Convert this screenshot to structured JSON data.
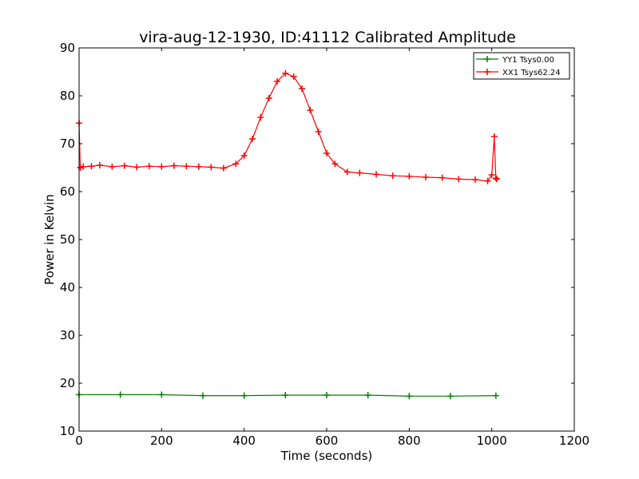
{
  "chart_data": {
    "type": "line",
    "title": "vira-aug-12-1930, ID:41112 Calibrated Amplitude",
    "xlabel": "Time (seconds)",
    "ylabel": "Power in Kelvin",
    "xlim": [
      0,
      1200
    ],
    "ylim": [
      10,
      90
    ],
    "xticks": [
      0,
      200,
      400,
      600,
      800,
      1000,
      1200
    ],
    "yticks": [
      10,
      20,
      30,
      40,
      50,
      60,
      70,
      80,
      90
    ],
    "grid": false,
    "legend_position": "top-right",
    "series": [
      {
        "name": "YY1 Tsys0.00",
        "color": "#008000",
        "marker": "+",
        "x": [
          0,
          100,
          200,
          300,
          400,
          500,
          600,
          700,
          800,
          900,
          1010
        ],
        "y": [
          17.6,
          17.6,
          17.6,
          17.4,
          17.4,
          17.5,
          17.5,
          17.5,
          17.3,
          17.3,
          17.4
        ]
      },
      {
        "name": "XX1 Tsys62.24",
        "color": "#ff0000",
        "marker": "+",
        "x": [
          0,
          3,
          10,
          30,
          50,
          80,
          110,
          140,
          170,
          200,
          230,
          260,
          290,
          320,
          350,
          380,
          400,
          420,
          440,
          460,
          480,
          500,
          520,
          540,
          560,
          580,
          600,
          620,
          650,
          680,
          720,
          760,
          800,
          840,
          880,
          920,
          960,
          990,
          1000,
          1006,
          1010,
          1012
        ],
        "y": [
          74.3,
          65.0,
          65.2,
          65.3,
          65.5,
          65.2,
          65.4,
          65.1,
          65.3,
          65.2,
          65.4,
          65.3,
          65.2,
          65.1,
          64.9,
          65.8,
          67.5,
          71.0,
          75.5,
          79.5,
          83.0,
          84.7,
          84.0,
          81.5,
          77.0,
          72.5,
          68.0,
          65.8,
          64.1,
          63.9,
          63.6,
          63.3,
          63.2,
          63.0,
          62.9,
          62.6,
          62.5,
          62.2,
          63.5,
          71.5,
          62.8,
          62.6
        ]
      }
    ]
  }
}
